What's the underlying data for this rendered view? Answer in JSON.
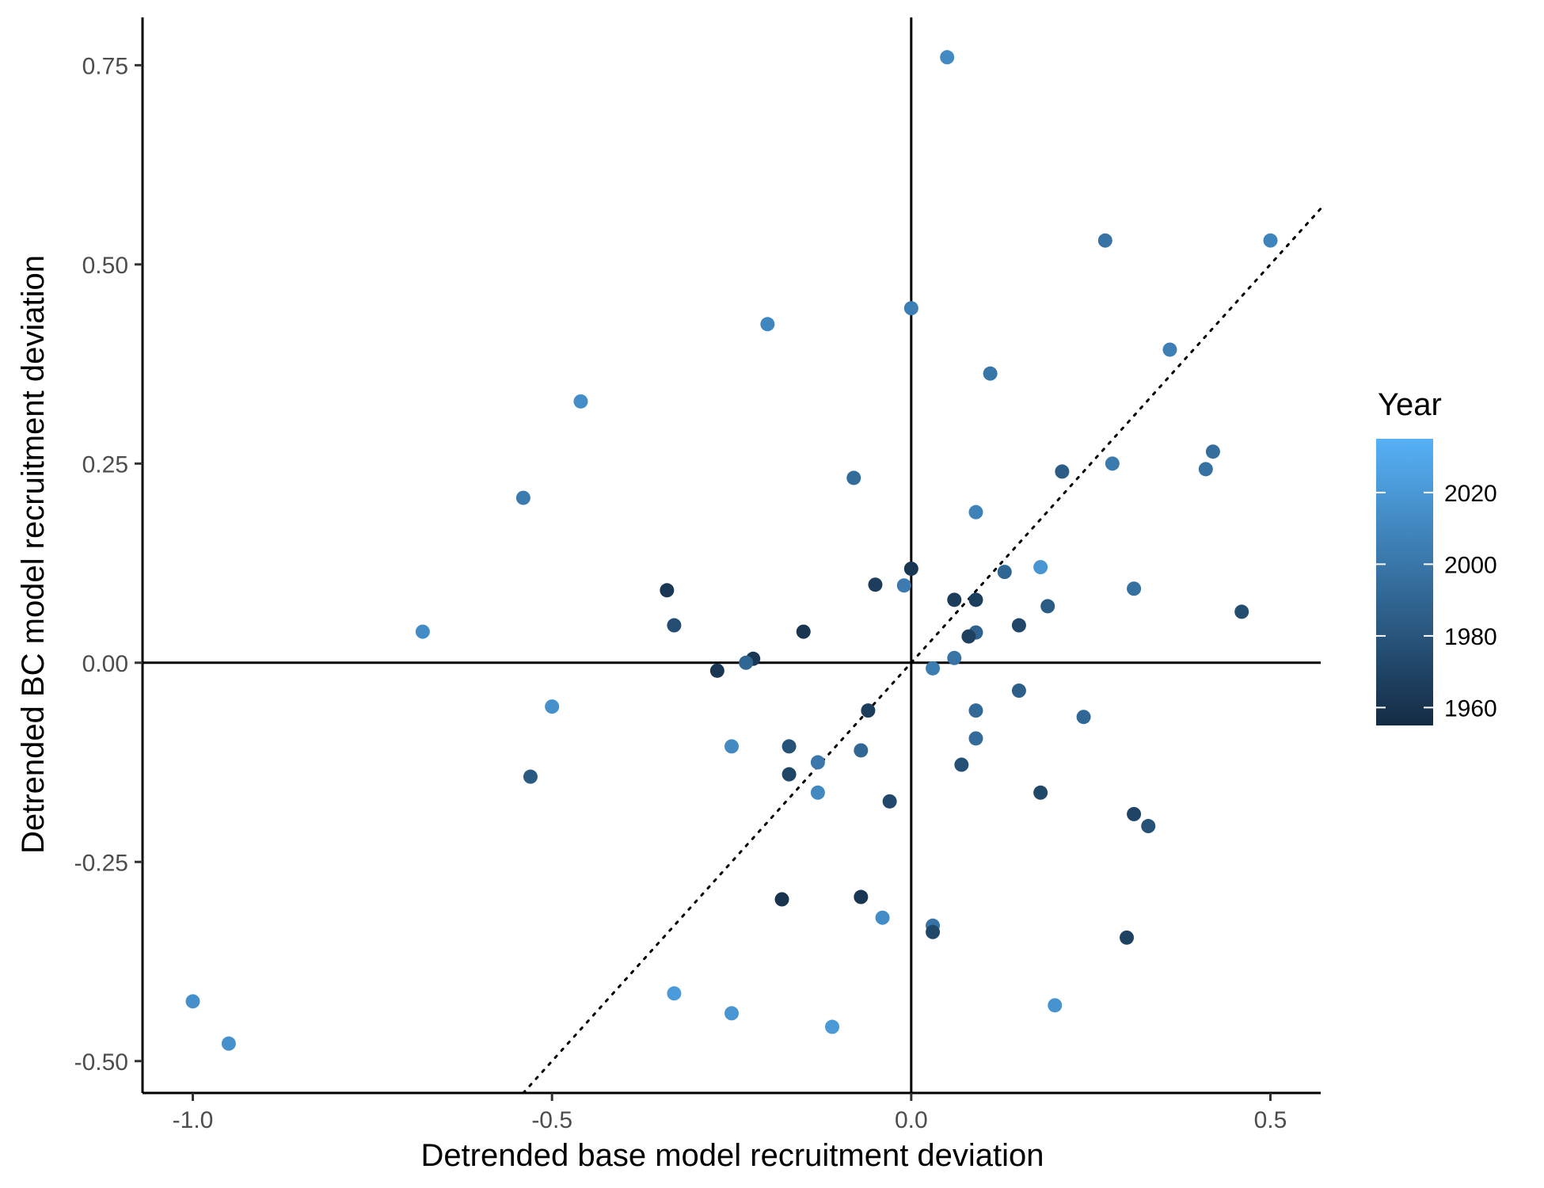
{
  "chart_data": {
    "type": "scatter",
    "xlabel": "Detrended base model recruitment deviation",
    "ylabel": "Detrended BC model recruitment deviation",
    "xlim": [
      -1.07,
      0.57
    ],
    "ylim": [
      -0.54,
      0.81
    ],
    "x_ticks": [
      -1.0,
      -0.5,
      0.0,
      0.5
    ],
    "x_tick_labels": [
      "-1.0",
      "-0.5",
      "0.0",
      "0.5"
    ],
    "y_ticks": [
      -0.5,
      -0.25,
      0.0,
      0.25,
      0.5,
      0.75
    ],
    "y_tick_labels": [
      "-0.50",
      "-0.25",
      "0.00",
      "0.25",
      "0.50",
      "0.75"
    ],
    "reference_lines": {
      "vertical_x": 0,
      "horizontal_y": 0,
      "diagonal_identity_dotted": true
    },
    "grid": false,
    "legend": {
      "title": "Year",
      "placement": "right",
      "type": "colorbar",
      "range": [
        1955,
        2035
      ],
      "ticks": [
        1960,
        1980,
        2000,
        2020
      ],
      "tick_labels": [
        "1960",
        "1980",
        "2000",
        "2020"
      ],
      "color_low": "#132b43",
      "color_high": "#56b1f7"
    },
    "points": [
      {
        "x": 0.05,
        "y": 0.76,
        "year": 2012
      },
      {
        "x": 0.27,
        "y": 0.53,
        "year": 1998
      },
      {
        "x": 0.5,
        "y": 0.53,
        "year": 2008
      },
      {
        "x": 0.0,
        "y": 0.445,
        "year": 2005
      },
      {
        "x": -0.2,
        "y": 0.425,
        "year": 2010
      },
      {
        "x": 0.36,
        "y": 0.393,
        "year": 2006
      },
      {
        "x": 0.11,
        "y": 0.363,
        "year": 2000
      },
      {
        "x": -0.46,
        "y": 0.328,
        "year": 2014
      },
      {
        "x": 0.42,
        "y": 0.265,
        "year": 1995
      },
      {
        "x": 0.28,
        "y": 0.25,
        "year": 2002
      },
      {
        "x": 0.41,
        "y": 0.243,
        "year": 1997
      },
      {
        "x": 0.21,
        "y": 0.24,
        "year": 1985
      },
      {
        "x": -0.08,
        "y": 0.232,
        "year": 1993
      },
      {
        "x": -0.54,
        "y": 0.207,
        "year": 2003
      },
      {
        "x": 0.09,
        "y": 0.189,
        "year": 2007
      },
      {
        "x": 0.18,
        "y": 0.12,
        "year": 2018
      },
      {
        "x": 0.0,
        "y": 0.118,
        "year": 1962
      },
      {
        "x": 0.13,
        "y": 0.114,
        "year": 1990
      },
      {
        "x": -0.05,
        "y": 0.098,
        "year": 1966
      },
      {
        "x": -0.01,
        "y": 0.097,
        "year": 2003
      },
      {
        "x": 0.31,
        "y": 0.093,
        "year": 1996
      },
      {
        "x": -0.34,
        "y": 0.091,
        "year": 1963
      },
      {
        "x": 0.06,
        "y": 0.079,
        "year": 1965
      },
      {
        "x": 0.09,
        "y": 0.079,
        "year": 1967
      },
      {
        "x": 0.19,
        "y": 0.071,
        "year": 1984
      },
      {
        "x": 0.46,
        "y": 0.064,
        "year": 1975
      },
      {
        "x": -0.33,
        "y": 0.047,
        "year": 1976
      },
      {
        "x": 0.15,
        "y": 0.047,
        "year": 1972
      },
      {
        "x": -0.68,
        "y": 0.039,
        "year": 2013
      },
      {
        "x": -0.15,
        "y": 0.039,
        "year": 1961
      },
      {
        "x": 0.09,
        "y": 0.038,
        "year": 1988
      },
      {
        "x": 0.08,
        "y": 0.033,
        "year": 1968
      },
      {
        "x": -0.22,
        "y": 0.005,
        "year": 1963
      },
      {
        "x": 0.06,
        "y": 0.006,
        "year": 1999
      },
      {
        "x": -0.23,
        "y": 0.0,
        "year": 1990
      },
      {
        "x": -0.27,
        "y": -0.01,
        "year": 1962
      },
      {
        "x": 0.03,
        "y": -0.007,
        "year": 2004
      },
      {
        "x": -0.5,
        "y": -0.055,
        "year": 2016
      },
      {
        "x": -0.06,
        "y": -0.06,
        "year": 1966
      },
      {
        "x": 0.09,
        "y": -0.06,
        "year": 1992
      },
      {
        "x": 0.15,
        "y": -0.035,
        "year": 1986
      },
      {
        "x": 0.24,
        "y": -0.068,
        "year": 1991
      },
      {
        "x": 0.09,
        "y": -0.095,
        "year": 1993
      },
      {
        "x": -0.25,
        "y": -0.105,
        "year": 2012
      },
      {
        "x": -0.17,
        "y": -0.105,
        "year": 1979
      },
      {
        "x": -0.07,
        "y": -0.11,
        "year": 1991
      },
      {
        "x": -0.13,
        "y": -0.125,
        "year": 2001
      },
      {
        "x": 0.07,
        "y": -0.128,
        "year": 1977
      },
      {
        "x": -0.17,
        "y": -0.14,
        "year": 1971
      },
      {
        "x": -0.53,
        "y": -0.143,
        "year": 1983
      },
      {
        "x": -0.13,
        "y": -0.163,
        "year": 2011
      },
      {
        "x": 0.18,
        "y": -0.163,
        "year": 1972
      },
      {
        "x": -0.03,
        "y": -0.174,
        "year": 1973
      },
      {
        "x": 0.31,
        "y": -0.19,
        "year": 1970
      },
      {
        "x": 0.33,
        "y": -0.205,
        "year": 1978
      },
      {
        "x": -0.18,
        "y": -0.297,
        "year": 1960
      },
      {
        "x": -0.07,
        "y": -0.294,
        "year": 1962
      },
      {
        "x": -0.04,
        "y": -0.32,
        "year": 2013
      },
      {
        "x": 0.03,
        "y": -0.33,
        "year": 1998
      },
      {
        "x": 0.03,
        "y": -0.338,
        "year": 1972
      },
      {
        "x": 0.3,
        "y": -0.345,
        "year": 1969
      },
      {
        "x": -0.33,
        "y": -0.415,
        "year": 2022
      },
      {
        "x": -1.0,
        "y": -0.425,
        "year": 2015
      },
      {
        "x": 0.2,
        "y": -0.43,
        "year": 2017
      },
      {
        "x": -0.25,
        "y": -0.44,
        "year": 2019
      },
      {
        "x": -0.11,
        "y": -0.457,
        "year": 2021
      },
      {
        "x": -0.95,
        "y": -0.478,
        "year": 2016
      }
    ]
  }
}
